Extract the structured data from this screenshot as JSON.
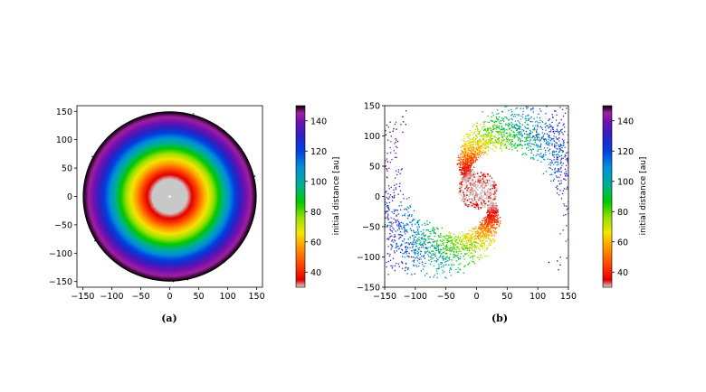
{
  "chart_data": [
    {
      "type": "scatter",
      "panel": "(a)",
      "xlim": [
        -160,
        160
      ],
      "ylim": [
        -160,
        160
      ],
      "xticks": [
        -150,
        -100,
        -50,
        0,
        50,
        100,
        150
      ],
      "yticks": [
        -150,
        -100,
        -50,
        0,
        50,
        100,
        150
      ],
      "description": "",
      "disk": {
        "r_inner": 30,
        "r_outer": 150,
        "inner_fill": "#c8c8c8"
      },
      "colorbar": {
        "label": "initial distance [au]",
        "range": [
          30,
          150
        ],
        "ticks": [
          40,
          60,
          80,
          100,
          120,
          140
        ]
      }
    },
    {
      "type": "scatter",
      "panel": "(b)",
      "xlim": [
        -150,
        150
      ],
      "ylim": [
        -150,
        150
      ],
      "xticks": [
        -150,
        -100,
        -50,
        0,
        50,
        100,
        150
      ],
      "yticks": [
        -150,
        -100,
        -50,
        0,
        50,
        100,
        150
      ],
      "colorbar": {
        "label": "initial distance [au]",
        "range": [
          30,
          150
        ],
        "ticks": [
          40,
          60,
          80,
          100,
          120,
          140
        ]
      }
    }
  ],
  "colormap": [
    "#d6d6d6",
    "#e00000",
    "#ff4000",
    "#ff9a00",
    "#f2e600",
    "#9be000",
    "#00c800",
    "#00b090",
    "#0090d8",
    "#0040e0",
    "#3020c0",
    "#7010b0",
    "#a020a0",
    "#000000"
  ],
  "captions": {
    "a": "(a)",
    "b": "(b)"
  }
}
